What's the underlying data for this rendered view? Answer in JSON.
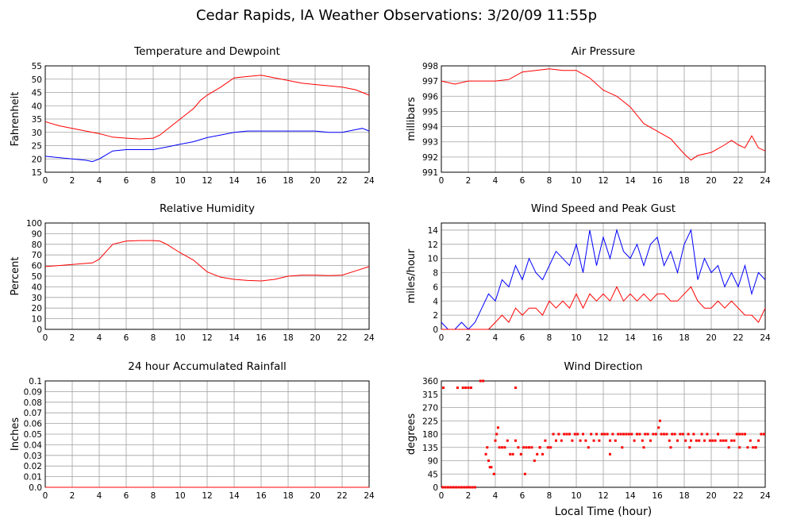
{
  "page_title": "Cedar Rapids, IA Weather Observations: 3/20/09 11:55p",
  "colors": {
    "red": "#ff0000",
    "blue": "#0000ff",
    "grid": "#a0a0a0"
  },
  "chart_data": [
    {
      "id": "temp",
      "type": "line",
      "title": "Temperature and Dewpoint",
      "ylabel": "Fahrenheit",
      "xlabel": "",
      "xlim": [
        0,
        24
      ],
      "ylim": [
        15,
        55
      ],
      "x_ticks": [
        0,
        2,
        4,
        6,
        8,
        10,
        12,
        14,
        16,
        18,
        20,
        22,
        24
      ],
      "y_ticks": [
        15,
        20,
        25,
        30,
        35,
        40,
        45,
        50,
        55
      ],
      "grid": true,
      "series": [
        {
          "color": "#ff0000",
          "x": [
            0,
            1,
            2,
            3,
            4,
            5,
            6,
            7,
            8,
            8.5,
            9,
            10,
            11,
            11.5,
            12,
            13,
            14,
            15,
            16,
            17,
            18,
            19,
            20,
            21,
            22,
            23,
            24
          ],
          "y": [
            34,
            32.5,
            31.5,
            30.5,
            29.5,
            28.2,
            27.8,
            27.5,
            27.8,
            29,
            31,
            35,
            39,
            42,
            44,
            47,
            50.5,
            51,
            51.5,
            50.5,
            49.5,
            48.5,
            48,
            47.5,
            47,
            46,
            44
          ]
        },
        {
          "color": "#0000ff",
          "x": [
            0,
            1,
            2,
            3,
            3.5,
            4,
            5,
            6,
            7,
            8,
            9,
            10,
            11,
            12,
            13,
            14,
            15,
            16,
            17,
            18,
            19,
            20,
            21,
            22,
            23,
            23.5,
            24
          ],
          "y": [
            21,
            20.5,
            20,
            19.5,
            19,
            20,
            23,
            23.5,
            23.5,
            23.5,
            24.5,
            25.5,
            26.5,
            28,
            29,
            30,
            30.5,
            30.5,
            30.5,
            30.5,
            30.5,
            30.5,
            30,
            30,
            31,
            31.5,
            30.5
          ]
        }
      ]
    },
    {
      "id": "pressure",
      "type": "line",
      "title": "Air Pressure",
      "ylabel": "millibars",
      "xlabel": "",
      "xlim": [
        0,
        24
      ],
      "ylim": [
        991,
        998
      ],
      "x_ticks": [
        0,
        2,
        4,
        6,
        8,
        10,
        12,
        14,
        16,
        18,
        20,
        22,
        24
      ],
      "y_ticks": [
        991,
        992,
        993,
        994,
        995,
        996,
        997,
        998
      ],
      "grid": true,
      "series": [
        {
          "color": "#ff0000",
          "x": [
            0,
            1,
            2,
            3,
            4,
            5,
            6,
            7,
            8,
            9,
            10,
            11,
            12,
            13,
            14,
            15,
            16,
            17,
            18,
            18.5,
            19,
            20,
            21,
            21.5,
            22,
            22.5,
            23,
            23.5,
            24
          ],
          "y": [
            997,
            996.8,
            997,
            997,
            997,
            997.1,
            997.6,
            997.7,
            997.8,
            997.7,
            997.7,
            997.2,
            996.4,
            996,
            995.3,
            994.2,
            993.7,
            993.2,
            992.2,
            991.8,
            992.1,
            992.3,
            992.8,
            993.1,
            992.8,
            992.6,
            993.4,
            992.6,
            992.4
          ]
        }
      ]
    },
    {
      "id": "humidity",
      "type": "line",
      "title": "Relative Humidity",
      "ylabel": "Percent",
      "xlabel": "",
      "xlim": [
        0,
        24
      ],
      "ylim": [
        0,
        100
      ],
      "x_ticks": [
        0,
        2,
        4,
        6,
        8,
        10,
        12,
        14,
        16,
        18,
        20,
        22,
        24
      ],
      "y_ticks": [
        0,
        10,
        20,
        30,
        40,
        50,
        60,
        70,
        80,
        90,
        100
      ],
      "grid": true,
      "series": [
        {
          "color": "#ff0000",
          "x": [
            0,
            1,
            2,
            3,
            3.5,
            4,
            5,
            6,
            7,
            8,
            8.5,
            9,
            10,
            11,
            12,
            13,
            14,
            15,
            16,
            17,
            18,
            19,
            20,
            21,
            22,
            23,
            24
          ],
          "y": [
            59,
            60,
            61,
            62,
            62.5,
            66,
            80,
            83,
            83.5,
            83.5,
            83,
            80,
            72,
            65,
            54,
            49,
            47,
            46,
            45.5,
            47,
            50,
            51,
            51,
            50.5,
            51,
            55,
            59
          ]
        }
      ]
    },
    {
      "id": "wind",
      "type": "line",
      "title": "Wind Speed and Peak Gust",
      "ylabel": "miles/hour",
      "xlabel": "",
      "xlim": [
        0,
        24
      ],
      "ylim": [
        0,
        15
      ],
      "x_ticks": [
        0,
        2,
        4,
        6,
        8,
        10,
        12,
        14,
        16,
        18,
        20,
        22,
        24
      ],
      "y_ticks": [
        0,
        2,
        4,
        6,
        8,
        10,
        12,
        14
      ],
      "grid": true,
      "series": [
        {
          "color": "#0000ff",
          "x": [
            0,
            0.5,
            1,
            1.5,
            2,
            2.5,
            3,
            3.5,
            4,
            4.5,
            5,
            5.5,
            6,
            6.5,
            7,
            7.5,
            8,
            8.5,
            9,
            9.5,
            10,
            10.5,
            11,
            11.5,
            12,
            12.5,
            13,
            13.5,
            14,
            14.5,
            15,
            15.5,
            16,
            16.5,
            17,
            17.5,
            18,
            18.5,
            19,
            19.5,
            20,
            20.5,
            21,
            21.5,
            22,
            22.5,
            23,
            23.5,
            24
          ],
          "y": [
            1,
            0,
            0,
            1,
            0,
            1,
            3,
            5,
            4,
            7,
            6,
            9,
            7,
            10,
            8,
            7,
            9,
            11,
            10,
            9,
            12,
            8,
            14,
            9,
            13,
            10,
            14,
            11,
            10,
            12,
            9,
            12,
            13,
            9,
            11,
            8,
            12,
            14,
            7,
            10,
            8,
            9,
            6,
            8,
            6,
            9,
            5,
            8,
            7
          ]
        },
        {
          "color": "#ff0000",
          "x": [
            0,
            0.5,
            1,
            1.5,
            2,
            2.5,
            3,
            3.5,
            4,
            4.5,
            5,
            5.5,
            6,
            6.5,
            7,
            7.5,
            8,
            8.5,
            9,
            9.5,
            10,
            10.5,
            11,
            11.5,
            12,
            12.5,
            13,
            13.5,
            14,
            14.5,
            15,
            15.5,
            16,
            16.5,
            17,
            17.5,
            18,
            18.5,
            19,
            19.5,
            20,
            20.5,
            21,
            21.5,
            22,
            22.5,
            23,
            23.5,
            24
          ],
          "y": [
            0,
            0,
            0,
            0,
            0,
            0,
            0,
            0,
            1,
            2,
            1,
            3,
            2,
            3,
            3,
            2,
            4,
            3,
            4,
            3,
            5,
            3,
            5,
            4,
            5,
            4,
            6,
            4,
            5,
            4,
            5,
            4,
            5,
            5,
            4,
            4,
            5,
            6,
            4,
            3,
            3,
            4,
            3,
            4,
            3,
            2,
            2,
            1,
            3
          ]
        }
      ]
    },
    {
      "id": "rain",
      "type": "line",
      "title": "24 hour Accumulated Rainfall",
      "ylabel": "Inches",
      "xlabel": "",
      "xlim": [
        0,
        24
      ],
      "ylim": [
        0,
        0.1
      ],
      "x_ticks": [
        0,
        2,
        4,
        6,
        8,
        10,
        12,
        14,
        16,
        18,
        20,
        22,
        24
      ],
      "y_ticks": [
        "0.0",
        "0.01",
        "0.02",
        "0.03",
        "0.04",
        "0.05",
        "0.06",
        "0.07",
        "0.08",
        "0.09",
        "0.1"
      ],
      "grid": true,
      "series": [
        {
          "color": "#ff0000",
          "x": [
            0,
            24
          ],
          "y": [
            0,
            0
          ]
        }
      ]
    },
    {
      "id": "direction",
      "type": "scatter",
      "title": "Wind Direction",
      "ylabel": "degrees",
      "xlabel": "Local Time (hour)",
      "xlim": [
        0,
        24
      ],
      "ylim": [
        0,
        360
      ],
      "x_ticks": [
        0,
        2,
        4,
        6,
        8,
        10,
        12,
        14,
        16,
        18,
        20,
        22,
        24
      ],
      "y_ticks": [
        0,
        45,
        90,
        135,
        180,
        225,
        270,
        315,
        360
      ],
      "grid": true,
      "series": [
        {
          "color": "#ff0000",
          "x": [
            0.1,
            0.3,
            0.5,
            0.7,
            0.9,
            1.1,
            1.3,
            1.5,
            1.7,
            1.9,
            2.1,
            2.3,
            2.5,
            0.15,
            1.2,
            1.6,
            1.8,
            2.0,
            2.2,
            2.9,
            3.1,
            3.3,
            3.5,
            3.7,
            3.9,
            4.1,
            4.3,
            4.5,
            4.7,
            4.9,
            5.1,
            5.3,
            5.5,
            5.7,
            5.9,
            6.1,
            6.3,
            6.5,
            6.7,
            6.9,
            7.1,
            7.3,
            7.5,
            7.7,
            7.9,
            8.1,
            8.3,
            8.5,
            8.7,
            8.9,
            9.1,
            9.3,
            9.5,
            9.7,
            9.9,
            10.1,
            10.3,
            10.5,
            10.7,
            10.9,
            11.1,
            11.3,
            11.5,
            11.7,
            11.9,
            12.1,
            12.3,
            12.5,
            12.7,
            12.9,
            13.1,
            13.3,
            13.5,
            13.7,
            13.9,
            14.1,
            14.3,
            14.5,
            14.7,
            14.9,
            15.1,
            15.3,
            15.5,
            15.7,
            15.9,
            16.1,
            16.3,
            16.5,
            16.7,
            16.9,
            17.1,
            17.3,
            17.5,
            17.7,
            17.9,
            18.1,
            18.3,
            18.5,
            18.7,
            18.9,
            19.1,
            19.3,
            19.5,
            19.7,
            19.9,
            20.1,
            20.3,
            20.5,
            20.7,
            20.9,
            21.1,
            21.3,
            21.5,
            21.7,
            21.9,
            22.1,
            22.3,
            22.5,
            22.7,
            22.9,
            23.1,
            23.3,
            23.5,
            23.7,
            23.9,
            5.5,
            6.2,
            4.2,
            3.6,
            3.4,
            4.0,
            7.3,
            16.2,
            17.0,
            18.4,
            12.5,
            13.4,
            15.0,
            22.1,
            23.3
          ],
          "y": [
            0,
            0,
            0,
            0,
            0,
            0,
            0,
            0,
            0,
            0,
            0,
            0,
            0,
            337,
            337,
            337,
            337,
            337,
            337,
            360,
            360,
            112,
            90,
            68,
            45,
            180,
            135,
            135,
            135,
            158,
            112,
            112,
            158,
            135,
            112,
            135,
            135,
            135,
            135,
            90,
            112,
            135,
            112,
            158,
            135,
            135,
            180,
            158,
            180,
            158,
            180,
            180,
            180,
            158,
            180,
            180,
            158,
            180,
            158,
            135,
            180,
            158,
            180,
            158,
            180,
            180,
            180,
            158,
            180,
            158,
            180,
            180,
            180,
            180,
            180,
            180,
            158,
            180,
            180,
            158,
            180,
            180,
            158,
            180,
            180,
            202,
            180,
            180,
            180,
            158,
            180,
            180,
            158,
            180,
            180,
            158,
            180,
            158,
            180,
            158,
            158,
            180,
            158,
            180,
            158,
            158,
            158,
            180,
            158,
            158,
            158,
            135,
            158,
            158,
            180,
            180,
            180,
            180,
            135,
            158,
            135,
            135,
            158,
            180,
            180,
            337,
            45,
            202,
            68,
            135,
            158,
            135,
            225,
            135,
            135,
            112,
            135,
            135,
            135,
            135
          ]
        }
      ]
    }
  ]
}
